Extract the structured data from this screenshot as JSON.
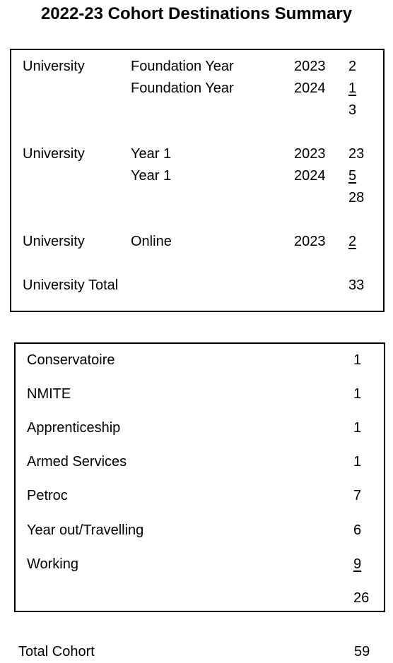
{
  "title": "2022-23 Cohort Destinations Summary",
  "university": {
    "groups": [
      {
        "label": "University",
        "rows": [
          {
            "course": "Foundation Year",
            "year": "2023",
            "count": "2"
          },
          {
            "course": "Foundation Year",
            "year": "2024",
            "count": "1"
          }
        ],
        "subtotal": "3"
      },
      {
        "label": "University",
        "rows": [
          {
            "course": "Year 1",
            "year": "2023",
            "count": "23"
          },
          {
            "course": "Year 1",
            "year": "2024",
            "count": "5"
          }
        ],
        "subtotal": "28"
      },
      {
        "label": "University",
        "rows": [
          {
            "course": "Online",
            "year": "2023",
            "count": "2"
          }
        ]
      }
    ],
    "total_label": "University Total",
    "total_value": "33"
  },
  "other": {
    "items": [
      {
        "label": "Conservatoire",
        "value": "1"
      },
      {
        "label": "NMITE",
        "value": "1"
      },
      {
        "label": "Apprenticeship",
        "value": "1"
      },
      {
        "label": "Armed Services",
        "value": "1"
      },
      {
        "label": "Petroc",
        "value": "7"
      },
      {
        "label": "Year out/Travelling",
        "value": "6"
      },
      {
        "label": "Working",
        "value": "9"
      }
    ],
    "subtotal": "26"
  },
  "total": {
    "label": "Total Cohort",
    "value": "59"
  }
}
